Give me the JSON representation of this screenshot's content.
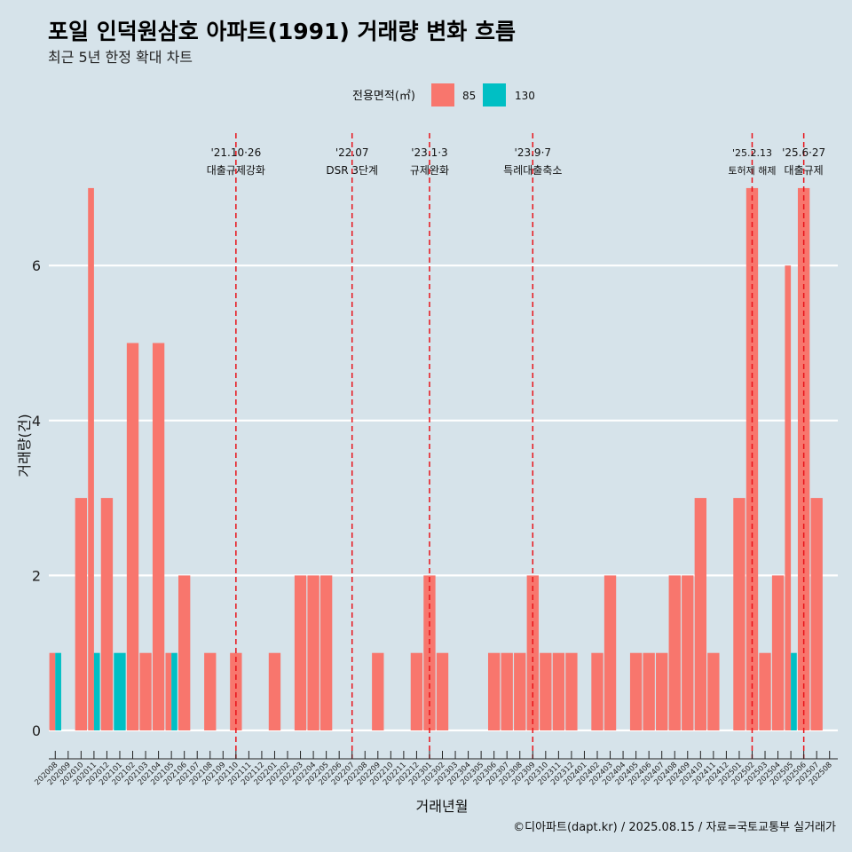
{
  "chart_data": {
    "type": "bar",
    "title": "포일 인덕원삼호 아파트(1991) 거래량 변화 흐름",
    "subtitle": "최근 5년 한정 확대 차트",
    "xlabel": "거래년월",
    "ylabel": "거래량(건)",
    "ylim": [
      0,
      7.5
    ],
    "yticks": [
      0,
      2,
      4,
      6
    ],
    "grid": "horizontal",
    "legend": {
      "title": "전용면적(㎡)",
      "placement": "top"
    },
    "categories": [
      "202008",
      "202009",
      "202010",
      "202011",
      "202012",
      "202101",
      "202102",
      "202103",
      "202104",
      "202105",
      "202106",
      "202107",
      "202108",
      "202109",
      "202110",
      "202111",
      "202112",
      "202201",
      "202202",
      "202203",
      "202204",
      "202205",
      "202206",
      "202207",
      "202208",
      "202209",
      "202210",
      "202211",
      "202212",
      "202301",
      "202302",
      "202303",
      "202304",
      "202305",
      "202306",
      "202307",
      "202308",
      "202309",
      "202310",
      "202311",
      "202312",
      "202401",
      "202402",
      "202403",
      "202404",
      "202405",
      "202406",
      "202407",
      "202408",
      "202409",
      "202410",
      "202411",
      "202412",
      "202501",
      "202502",
      "202503",
      "202504",
      "202505",
      "202506",
      "202507",
      "202508"
    ],
    "series": [
      {
        "name": "85",
        "color": "#f8766d",
        "values": [
          1,
          0,
          3,
          7,
          3,
          0,
          5,
          1,
          5,
          1,
          2,
          0,
          1,
          0,
          1,
          0,
          0,
          1,
          0,
          2,
          2,
          2,
          0,
          0,
          0,
          1,
          0,
          0,
          1,
          2,
          1,
          0,
          0,
          0,
          1,
          1,
          1,
          2,
          1,
          1,
          1,
          0,
          1,
          2,
          0,
          1,
          1,
          1,
          2,
          2,
          3,
          1,
          0,
          3,
          7,
          1,
          2,
          6,
          7,
          3,
          0
        ]
      },
      {
        "name": "130",
        "color": "#00bfc4",
        "values": [
          1,
          0,
          0,
          1,
          0,
          1,
          0,
          0,
          0,
          1,
          0,
          0,
          0,
          0,
          0,
          0,
          0,
          0,
          0,
          0,
          0,
          0,
          0,
          0,
          0,
          0,
          0,
          0,
          0,
          0,
          0,
          0,
          0,
          0,
          0,
          0,
          0,
          0,
          0,
          0,
          0,
          0,
          0,
          0,
          0,
          0,
          0,
          0,
          0,
          0,
          0,
          0,
          0,
          0,
          0,
          0,
          0,
          1,
          0,
          0,
          0
        ]
      }
    ],
    "annotations": [
      {
        "month": "202110",
        "date": "'21.10·26",
        "label": "대출규제강화"
      },
      {
        "month": "202207",
        "date": "'22.07",
        "label": "DSR 3단계"
      },
      {
        "month": "202301",
        "date": "'23.1·3",
        "label": "규제완화"
      },
      {
        "month": "202309",
        "date": "'23.9·7",
        "label": "특례대출축소"
      },
      {
        "month": "202502",
        "date": "'25.2.13",
        "label": "토허제 해제"
      },
      {
        "month": "202506",
        "date": "'25.6·27",
        "label": "대출규제"
      }
    ],
    "caption": "©디아파트(dapt.kr) / 2025.08.15 / 자료=국토교통부 실거래가"
  }
}
